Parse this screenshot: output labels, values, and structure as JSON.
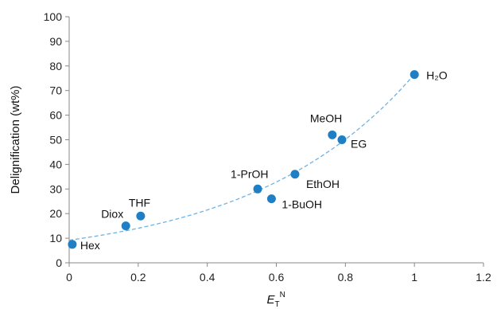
{
  "chart_data": {
    "type": "scatter",
    "title": "",
    "xlabel": "E_T^N",
    "xlabel_main": "E",
    "xlabel_sub": "T",
    "xlabel_sup": "N",
    "ylabel": "Delignification (wt%)",
    "xlim": [
      0,
      1.2
    ],
    "ylim": [
      0,
      100
    ],
    "xticks": [
      "0",
      "0.2",
      "0.4",
      "0.6",
      "0.8",
      "1",
      "1.2"
    ],
    "yticks": [
      "0",
      "10",
      "20",
      "30",
      "40",
      "50",
      "60",
      "70",
      "80",
      "90",
      "100"
    ],
    "grid": false,
    "legend": "none",
    "series": [
      {
        "points": [
          {
            "label": "Hex",
            "x": 0.009,
            "y": 7.5
          },
          {
            "label": "Diox",
            "x": 0.164,
            "y": 15
          },
          {
            "label": "THF",
            "x": 0.207,
            "y": 19
          },
          {
            "label": "1-PrOH",
            "x": 0.546,
            "y": 30
          },
          {
            "label": "1-BuOH",
            "x": 0.586,
            "y": 26
          },
          {
            "label": "EthOH",
            "x": 0.654,
            "y": 36
          },
          {
            "label": "MeOH",
            "x": 0.762,
            "y": 52
          },
          {
            "label": "EG",
            "x": 0.79,
            "y": 50
          },
          {
            "label": "H₂O",
            "x": 1.0,
            "y": 76.5
          }
        ]
      }
    ],
    "trendline": {
      "type": "exponential",
      "a": 9.2,
      "b": 2.12,
      "x_range": [
        0,
        1.0
      ]
    },
    "colors": {
      "point": "#1f7fc4",
      "trendline": "#6fb3e4",
      "axis": "#888888"
    }
  }
}
